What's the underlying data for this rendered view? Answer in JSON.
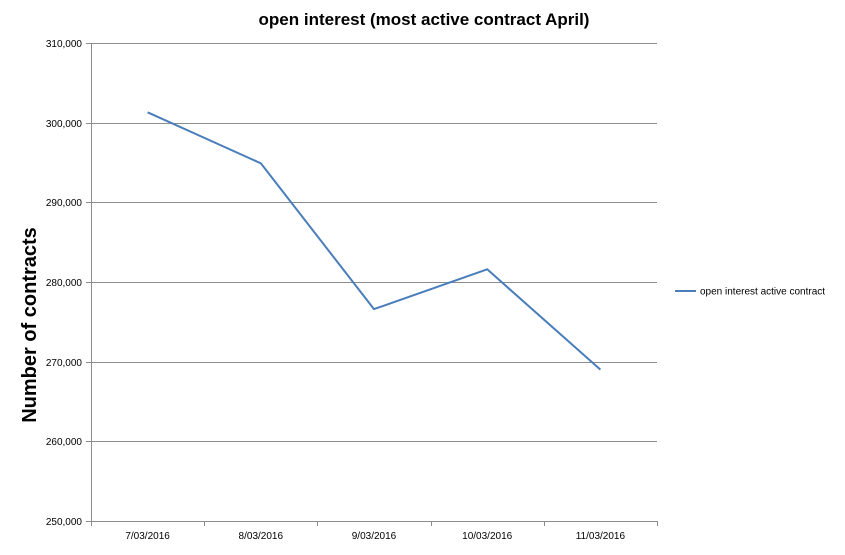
{
  "chart_data": {
    "type": "line",
    "title": "open interest (most active contract April)",
    "xlabel": "",
    "ylabel": "Number of contracts",
    "categories": [
      "7/03/2016",
      "8/03/2016",
      "9/03/2016",
      "10/03/2016",
      "11/03/2016"
    ],
    "series": [
      {
        "name": "open interest active contract",
        "values": [
          301300,
          294900,
          276600,
          281600,
          269000
        ],
        "color": "#4a7ebb"
      }
    ],
    "ylim": [
      250000,
      310000
    ],
    "yticks": [
      "250,000",
      "260,000",
      "270,000",
      "280,000",
      "290,000",
      "300,000",
      "310,000"
    ],
    "ytick_values": [
      250000,
      260000,
      270000,
      280000,
      290000,
      300000,
      310000
    ],
    "grid": true,
    "legend_position": "right",
    "grid_color": "#8c8c8c",
    "axis_color": "#8c8c8c"
  }
}
